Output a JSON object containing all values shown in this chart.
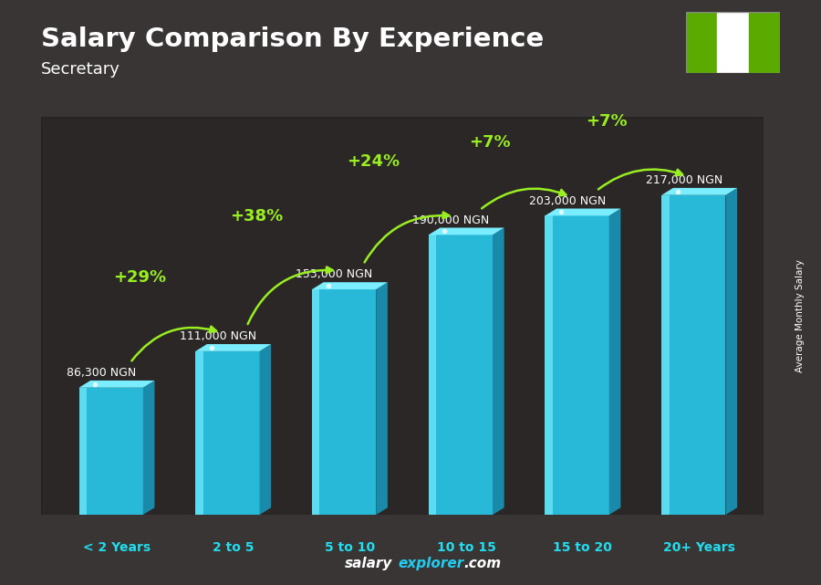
{
  "title": "Salary Comparison By Experience",
  "subtitle": "Secretary",
  "categories": [
    "< 2 Years",
    "2 to 5",
    "5 to 10",
    "10 to 15",
    "15 to 20",
    "20+ Years"
  ],
  "values": [
    86300,
    111000,
    153000,
    190000,
    203000,
    217000
  ],
  "labels": [
    "86,300 NGN",
    "111,000 NGN",
    "153,000 NGN",
    "190,000 NGN",
    "203,000 NGN",
    "217,000 NGN"
  ],
  "pct_changes": [
    "+29%",
    "+38%",
    "+24%",
    "+7%",
    "+7%"
  ],
  "bar_front_color": "#29b9d8",
  "bar_light_color": "#5cdcf0",
  "bar_dark_color": "#1a8aaa",
  "bar_top_color": "#7aeeff",
  "pct_color": "#99ee22",
  "xlabel_color": "#22ddee",
  "label_color": "#ffffff",
  "title_color": "#ffffff",
  "subtitle_color": "#ffffff",
  "bg_color": "#3a3535",
  "ylabel_text": "Average Monthly Salary",
  "nigeria_green": "#5aaa00",
  "footer_salary_color": "#ffffff",
  "footer_explorer_color": "#22ccee",
  "ylim_max": 270000,
  "bar_width": 0.55,
  "bar_gap": 1.0,
  "pct_arrow_data": [
    {
      "from_i": 0,
      "to_i": 1,
      "pct": "+29%",
      "arc": 0.35
    },
    {
      "from_i": 1,
      "to_i": 2,
      "pct": "+38%",
      "arc": 0.35
    },
    {
      "from_i": 2,
      "to_i": 3,
      "pct": "+24%",
      "arc": 0.32
    },
    {
      "from_i": 3,
      "to_i": 4,
      "pct": "+7%",
      "arc": 0.3
    },
    {
      "from_i": 4,
      "to_i": 5,
      "pct": "+7%",
      "arc": 0.28
    }
  ]
}
